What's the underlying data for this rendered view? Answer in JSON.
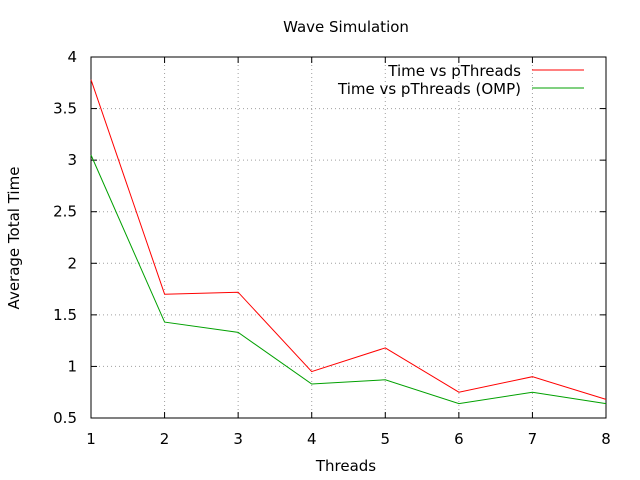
{
  "chart_data": {
    "type": "line",
    "title": "Wave Simulation",
    "xlabel": "Threads",
    "ylabel": "Average Total Time",
    "x": [
      1,
      2,
      3,
      4,
      5,
      6,
      7,
      8
    ],
    "xlim": [
      1,
      8
    ],
    "ylim": [
      0.5,
      4
    ],
    "xticks": [
      "1",
      "2",
      "3",
      "4",
      "5",
      "6",
      "7",
      "8"
    ],
    "yticks": [
      "0.5",
      "1",
      "1.5",
      "2",
      "2.5",
      "3",
      "3.5",
      "4"
    ],
    "grid": true,
    "legend_position": "top-right",
    "series": [
      {
        "name": "Time vs pThreads",
        "color": "#ff0000",
        "values": [
          3.78,
          1.7,
          1.72,
          0.95,
          1.18,
          0.75,
          0.9,
          0.68
        ]
      },
      {
        "name": "Time vs pThreads (OMP)",
        "color": "#00a000",
        "values": [
          3.05,
          1.43,
          1.33,
          0.83,
          0.87,
          0.64,
          0.75,
          0.64
        ]
      }
    ]
  }
}
